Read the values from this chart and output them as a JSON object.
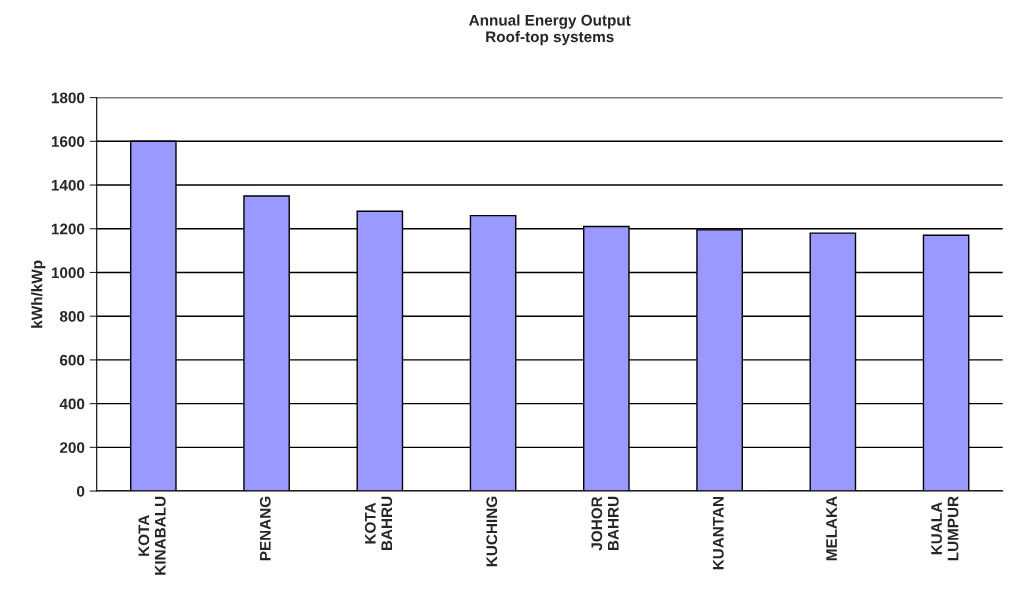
{
  "chart_data": {
    "type": "bar",
    "title": "Annual Energy Output\nRoof-top systems",
    "ylabel": "kWh/kWp",
    "categories": [
      "KOTA\nKINABALU",
      "PENANG",
      "KOTA\nBAHRU",
      "KUCHING",
      "JOHOR\nBAHRU",
      "KUANTAN",
      "MELAKA",
      "KUALA\nLUMPUR"
    ],
    "values": [
      1600,
      1350,
      1280,
      1260,
      1210,
      1195,
      1180,
      1170
    ],
    "color": "#9999ff",
    "ylim": [
      0,
      1800
    ],
    "yticks": [
      0,
      200,
      400,
      600,
      800,
      1000,
      1200,
      1400,
      1600,
      1800
    ],
    "grid": "y",
    "legend": false
  }
}
